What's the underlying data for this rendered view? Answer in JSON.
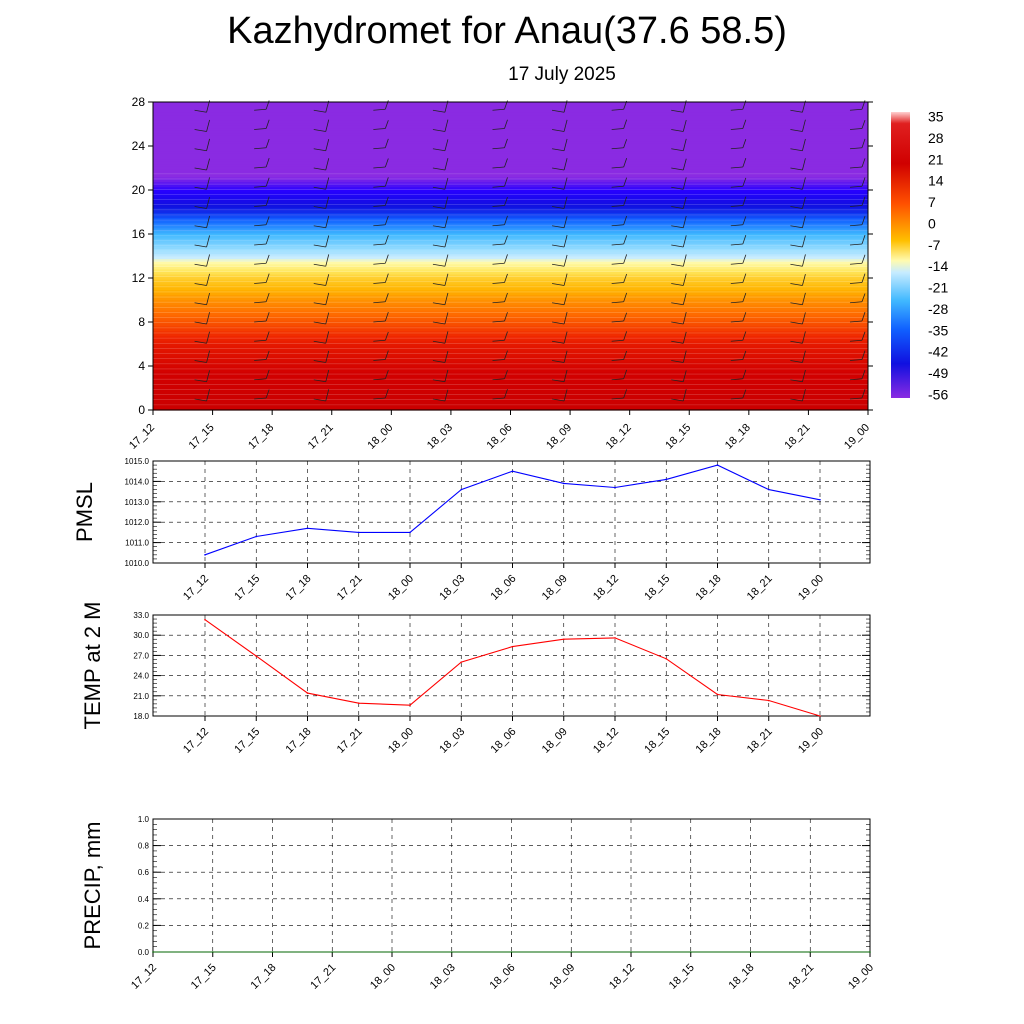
{
  "header": {
    "title": "Kazhydromet for Anau(37.6 58.5)",
    "date": "17 July 2025"
  },
  "chart_data": [
    {
      "type": "heatmap",
      "name": "temperature-height",
      "x_ticks": [
        "17_12",
        "17_15",
        "17_18",
        "17_21",
        "18_00",
        "18_03",
        "18_06",
        "18_09",
        "18_12",
        "18_15",
        "18_18",
        "18_21",
        "19_00"
      ],
      "y_ticks": [
        0,
        4,
        8,
        12,
        16,
        20,
        24,
        28
      ],
      "ylim": [
        0,
        28
      ],
      "colorbar_labels": [
        "35",
        "28",
        "21",
        "14",
        "7",
        "0",
        "-7",
        "-14",
        "-21",
        "-28",
        "-35",
        "-42",
        "-49",
        "-56"
      ],
      "colorbar_range": [
        -60,
        38
      ],
      "profile": [
        [
          0,
          32
        ],
        [
          2,
          30
        ],
        [
          4,
          27
        ],
        [
          6,
          23
        ],
        [
          8,
          15
        ],
        [
          10,
          8
        ],
        [
          12,
          0
        ],
        [
          13.5,
          -10
        ],
        [
          14,
          -15
        ],
        [
          16,
          -30
        ],
        [
          18,
          -45
        ],
        [
          20,
          -55
        ],
        [
          21.2,
          -60
        ],
        [
          28,
          -60
        ]
      ],
      "wind_barbs": true
    },
    {
      "type": "line",
      "name": "pmsl",
      "ylabel": "PMSL",
      "x": [
        "17_12",
        "17_15",
        "17_18",
        "17_21",
        "18_00",
        "18_03",
        "18_06",
        "18_09",
        "18_12",
        "18_15",
        "18_18",
        "18_21",
        "19_00"
      ],
      "values": [
        1010.4,
        1011.3,
        1011.7,
        1011.5,
        1011.5,
        1013.6,
        1014.5,
        1013.9,
        1013.7,
        1014.1,
        1014.8,
        1013.6,
        1013.1
      ],
      "ylim": [
        1010.0,
        1015.0
      ],
      "y_ticks": [
        "1010.0",
        "1011.0",
        "1012.0",
        "1013.0",
        "1014.0",
        "1015.0"
      ],
      "color": "#0000ff",
      "grid": true
    },
    {
      "type": "line",
      "name": "temp2m",
      "ylabel": "TEMP at 2 M",
      "x": [
        "17_12",
        "17_15",
        "17_18",
        "17_21",
        "18_00",
        "18_03",
        "18_06",
        "18_09",
        "18_12",
        "18_15",
        "18_18",
        "18_21",
        "19_00"
      ],
      "values": [
        32.3,
        26.9,
        21.4,
        19.9,
        19.6,
        26.0,
        28.3,
        29.4,
        29.6,
        26.5,
        21.2,
        20.3,
        18.0
      ],
      "ylim": [
        18.0,
        33.0
      ],
      "y_ticks": [
        "18.0",
        "21.0",
        "24.0",
        "27.0",
        "30.0",
        "33.0"
      ],
      "color": "#ff0000",
      "grid": true
    },
    {
      "type": "line",
      "name": "precip",
      "ylabel": "PRECIP, mm",
      "x": [
        "17_12",
        "17_15",
        "17_18",
        "17_21",
        "18_00",
        "18_03",
        "18_06",
        "18_09",
        "18_12",
        "18_15",
        "18_18",
        "18_21",
        "19_00"
      ],
      "values": [
        0,
        0,
        0,
        0,
        0,
        0,
        0,
        0,
        0,
        0,
        0,
        0,
        0
      ],
      "ylim": [
        0.0,
        1.0
      ],
      "y_ticks": [
        "0.0",
        "0.2",
        "0.4",
        "0.6",
        "0.8",
        "1.0"
      ],
      "color": "#006400",
      "grid": true
    }
  ]
}
